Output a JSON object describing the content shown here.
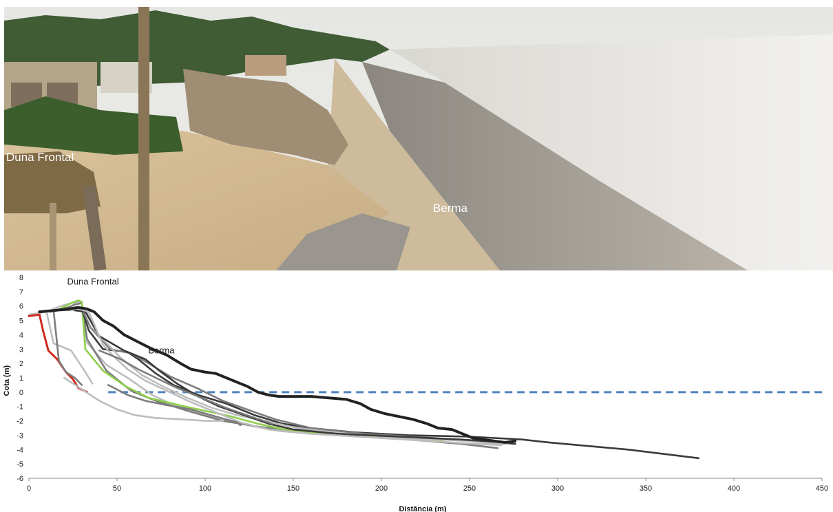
{
  "photo": {
    "labels": {
      "dune": "Duna Frontal",
      "berm": "Berma"
    }
  },
  "chart_data": {
    "type": "line",
    "xlabel": "Distância (m)",
    "ylabel": "Cota (m)",
    "xlim": [
      0,
      450
    ],
    "ylim": [
      -6,
      8
    ],
    "x_ticks": [
      "0",
      "50",
      "100",
      "150",
      "200",
      "250",
      "300",
      "350",
      "400",
      "450"
    ],
    "y_ticks": [
      "8",
      "7",
      "6",
      "5",
      "4",
      "3",
      "2",
      "1",
      "0",
      "-1",
      "-2",
      "-3",
      "-4",
      "-5",
      "-6"
    ],
    "grid": false,
    "annotations": [
      {
        "text": "Duna Frontal",
        "x": 24,
        "y": 7.5
      },
      {
        "text": "Berma",
        "x": 70,
        "y": 2.7
      }
    ],
    "reference_line": {
      "y": 0,
      "x_start": 45,
      "x_end": 450,
      "style": "dashed",
      "color": "#4f81bd"
    },
    "colors": {
      "red": "#d0281e",
      "green": "#8fce4c",
      "dark": "#3a3a3a",
      "mid": "#7c7c7c",
      "light": "#bdbdbd",
      "black_dotted": "#222222"
    },
    "series": [
      {
        "color_key": "light",
        "points": [
          [
            0,
            5.4
          ],
          [
            10,
            5.6
          ],
          [
            14,
            3.4
          ],
          [
            24,
            2.9
          ],
          [
            32,
            1.4
          ],
          [
            36,
            0.6
          ]
        ]
      },
      {
        "color_key": "red",
        "points": [
          [
            0,
            5.3
          ],
          [
            6,
            5.4
          ],
          [
            8,
            4.3
          ],
          [
            11,
            2.9
          ],
          [
            16,
            2.3
          ],
          [
            21,
            1.4
          ],
          [
            25,
            0.9
          ],
          [
            28,
            0.3
          ],
          [
            33,
            0.0
          ]
        ]
      },
      {
        "color_key": "mid",
        "points": [
          [
            6,
            5.6
          ],
          [
            14,
            5.7
          ],
          [
            17,
            2.2
          ],
          [
            21,
            1.4
          ],
          [
            26,
            1.0
          ],
          [
            30,
            0.5
          ]
        ]
      },
      {
        "color_key": "light",
        "points": [
          [
            10,
            5.6
          ],
          [
            18,
            6.0
          ],
          [
            24,
            6.2
          ],
          [
            30,
            6.3
          ],
          [
            32,
            3.6
          ],
          [
            44,
            1.9
          ],
          [
            56,
            1.0
          ],
          [
            70,
            -0.2
          ],
          [
            82,
            -0.9
          ],
          [
            96,
            -1.4
          ],
          [
            108,
            -1.8
          ],
          [
            118,
            -2.1
          ],
          [
            128,
            -2.4
          ],
          [
            142,
            -2.7
          ],
          [
            160,
            -2.9
          ],
          [
            190,
            -3.1
          ],
          [
            220,
            -3.2
          ],
          [
            250,
            -3.4
          ],
          [
            265,
            -3.6
          ],
          [
            270,
            -3.6
          ]
        ]
      },
      {
        "color_key": "mid",
        "points": [
          [
            12,
            5.6
          ],
          [
            22,
            5.9
          ],
          [
            26,
            6.1
          ],
          [
            30,
            6.2
          ],
          [
            33,
            3.7
          ],
          [
            44,
            1.5
          ],
          [
            58,
            0.1
          ],
          [
            72,
            -0.6
          ],
          [
            90,
            -1.3
          ],
          [
            110,
            -2.0
          ],
          [
            130,
            -2.4
          ],
          [
            150,
            -2.7
          ],
          [
            180,
            -3.0
          ],
          [
            215,
            -3.3
          ],
          [
            245,
            -3.6
          ],
          [
            266,
            -3.9
          ]
        ]
      },
      {
        "color_key": "green",
        "points": [
          [
            16,
            5.7
          ],
          [
            24,
            6.2
          ],
          [
            28,
            6.4
          ],
          [
            30,
            6.3
          ],
          [
            32,
            3.0
          ],
          [
            42,
            1.5
          ],
          [
            55,
            0.4
          ],
          [
            68,
            -0.4
          ],
          [
            85,
            -0.9
          ],
          [
            100,
            -1.3
          ],
          [
            115,
            -1.7
          ],
          [
            130,
            -2.2
          ],
          [
            145,
            -2.6
          ],
          [
            170,
            -2.9
          ],
          [
            200,
            -3.1
          ],
          [
            225,
            -3.3
          ],
          [
            235,
            -3.4
          ]
        ]
      },
      {
        "color_key": "dark",
        "points": [
          [
            18,
            5.7
          ],
          [
            30,
            5.8
          ],
          [
            34,
            4.3
          ],
          [
            42,
            3.0
          ],
          [
            56,
            2.8
          ],
          [
            62,
            2.3
          ],
          [
            72,
            1.3
          ],
          [
            82,
            0.5
          ],
          [
            96,
            -0.2
          ],
          [
            112,
            -0.8
          ],
          [
            128,
            -1.6
          ],
          [
            144,
            -2.2
          ],
          [
            160,
            -2.5
          ],
          [
            185,
            -2.8
          ],
          [
            215,
            -3.0
          ],
          [
            250,
            -3.1
          ],
          [
            280,
            -3.3
          ],
          [
            295,
            -3.5
          ],
          [
            340,
            -4.0
          ],
          [
            380,
            -4.6
          ]
        ]
      },
      {
        "color_key": "mid",
        "points": [
          [
            22,
            5.7
          ],
          [
            30,
            5.8
          ],
          [
            35,
            4.5
          ],
          [
            46,
            3.0
          ],
          [
            58,
            2.7
          ],
          [
            68,
            2.0
          ],
          [
            80,
            1.1
          ],
          [
            95,
            0.3
          ],
          [
            110,
            -0.6
          ],
          [
            126,
            -1.3
          ],
          [
            140,
            -1.9
          ],
          [
            160,
            -2.5
          ],
          [
            190,
            -2.9
          ],
          [
            230,
            -3.2
          ],
          [
            265,
            -3.5
          ],
          [
            275,
            -3.6
          ]
        ]
      },
      {
        "color_key": "light",
        "points": [
          [
            24,
            5.7
          ],
          [
            32,
            5.8
          ],
          [
            38,
            4.2
          ],
          [
            52,
            2.4
          ],
          [
            64,
            1.2
          ],
          [
            76,
            0.4
          ],
          [
            90,
            -0.4
          ],
          [
            104,
            -1.1
          ],
          [
            118,
            -1.6
          ],
          [
            134,
            -2.0
          ],
          [
            152,
            -2.5
          ],
          [
            180,
            -2.9
          ],
          [
            215,
            -3.2
          ],
          [
            250,
            -3.4
          ],
          [
            272,
            -3.6
          ]
        ]
      },
      {
        "color_key": "dark",
        "points": [
          [
            26,
            5.7
          ],
          [
            32,
            5.6
          ],
          [
            40,
            3.9
          ],
          [
            54,
            2.9
          ],
          [
            66,
            2.3
          ],
          [
            74,
            1.5
          ],
          [
            84,
            0.6
          ],
          [
            96,
            -0.3
          ],
          [
            108,
            -1.0
          ],
          [
            122,
            -1.6
          ],
          [
            136,
            -2.2
          ],
          [
            150,
            -2.6
          ],
          [
            175,
            -2.9
          ],
          [
            210,
            -3.1
          ],
          [
            245,
            -3.3
          ],
          [
            270,
            -3.5
          ],
          [
            276,
            -3.6
          ]
        ]
      },
      {
        "color_key": "light",
        "points": [
          [
            28,
            5.8
          ],
          [
            34,
            5.6
          ],
          [
            42,
            3.3
          ],
          [
            48,
            2.5
          ],
          [
            56,
            1.6
          ],
          [
            66,
            0.8
          ],
          [
            80,
            0.0
          ],
          [
            92,
            -0.7
          ],
          [
            106,
            -1.4
          ],
          [
            120,
            -2.1
          ],
          [
            136,
            -2.6
          ],
          [
            160,
            -2.9
          ],
          [
            200,
            -3.2
          ],
          [
            240,
            -3.5
          ],
          [
            268,
            -3.7
          ]
        ]
      },
      {
        "color_key": "light",
        "points": [
          [
            20,
            1.0
          ],
          [
            30,
            0.2
          ],
          [
            40,
            -0.6
          ],
          [
            50,
            -1.2
          ],
          [
            60,
            -1.6
          ],
          [
            72,
            -1.8
          ],
          [
            88,
            -1.9
          ],
          [
            100,
            -2.0
          ],
          [
            110,
            -2.0
          ]
        ]
      },
      {
        "color_key": "mid",
        "points": [
          [
            45,
            0.5
          ],
          [
            56,
            -0.2
          ],
          [
            66,
            -0.6
          ],
          [
            78,
            -0.9
          ],
          [
            92,
            -1.2
          ],
          [
            106,
            -1.7
          ],
          [
            118,
            -2.1
          ],
          [
            120,
            -2.3
          ]
        ]
      },
      {
        "color_key": "mid",
        "points": [
          [
            40,
            2.9
          ],
          [
            52,
            2.3
          ],
          [
            62,
            1.6
          ],
          [
            72,
            1.0
          ],
          [
            84,
            0.3
          ],
          [
            98,
            -0.4
          ],
          [
            112,
            -1.1
          ],
          [
            126,
            -1.7
          ],
          [
            138,
            -2.2
          ]
        ]
      },
      {
        "color_key": "black_dotted",
        "dotted": true,
        "points": [
          [
            6,
            5.6
          ],
          [
            15,
            5.7
          ],
          [
            22,
            5.8
          ],
          [
            28,
            5.9
          ],
          [
            33,
            5.8
          ],
          [
            37,
            5.6
          ],
          [
            42,
            5.0
          ],
          [
            48,
            4.6
          ],
          [
            54,
            4.0
          ],
          [
            62,
            3.5
          ],
          [
            70,
            3.0
          ],
          [
            78,
            2.6
          ],
          [
            86,
            2.0
          ],
          [
            92,
            1.6
          ],
          [
            100,
            1.4
          ],
          [
            106,
            1.3
          ],
          [
            112,
            1.0
          ],
          [
            118,
            0.7
          ],
          [
            124,
            0.4
          ],
          [
            130,
            0.0
          ],
          [
            136,
            -0.2
          ],
          [
            142,
            -0.3
          ],
          [
            150,
            -0.3
          ],
          [
            160,
            -0.3
          ],
          [
            170,
            -0.4
          ],
          [
            180,
            -0.5
          ],
          [
            188,
            -0.8
          ],
          [
            194,
            -1.2
          ],
          [
            202,
            -1.5
          ],
          [
            210,
            -1.7
          ],
          [
            218,
            -1.9
          ],
          [
            226,
            -2.2
          ],
          [
            232,
            -2.5
          ],
          [
            240,
            -2.6
          ],
          [
            246,
            -2.9
          ],
          [
            252,
            -3.2
          ],
          [
            258,
            -3.3
          ],
          [
            264,
            -3.4
          ],
          [
            270,
            -3.5
          ],
          [
            276,
            -3.4
          ]
        ]
      }
    ]
  }
}
